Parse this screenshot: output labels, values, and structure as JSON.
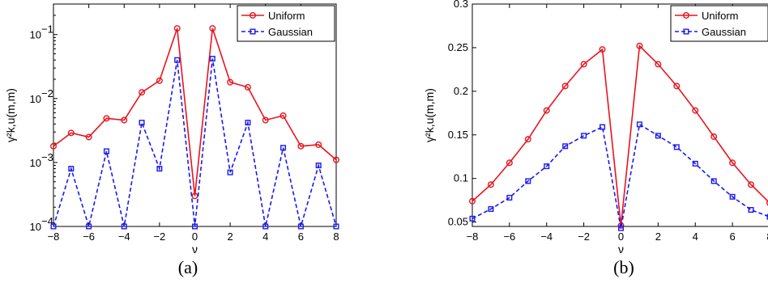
{
  "colors": {
    "uniform": "#e8141e",
    "gaussian": "#1a1aee"
  },
  "chart_data": [
    {
      "panel": "a",
      "type": "line",
      "caption": "(a)",
      "xlabel": "ν",
      "ylabel": "γ²k,u(m,m)",
      "yscale": "log",
      "xlim": [
        -8,
        8
      ],
      "ylim": [
        0.0001,
        0.3
      ],
      "xticks": [
        -8,
        -6,
        -4,
        -2,
        0,
        2,
        4,
        6,
        8
      ],
      "xtick_labels": [
        "−8",
        "−6",
        "−4",
        "−2",
        "0",
        "2",
        "4",
        "6",
        "8"
      ],
      "yticks": [
        0.0001,
        0.001,
        0.01,
        0.1
      ],
      "ytick_labels": [
        {
          "base": "10",
          "exp": "−4"
        },
        {
          "base": "10",
          "exp": "−3"
        },
        {
          "base": "10",
          "exp": "−2"
        },
        {
          "base": "10",
          "exp": "−1"
        }
      ],
      "legend": "top-right",
      "x": [
        -8,
        -7,
        -6,
        -5,
        -4,
        -3,
        -2,
        -1,
        0,
        1,
        2,
        3,
        4,
        5,
        6,
        7,
        8
      ],
      "series": [
        {
          "name": "Uniform",
          "style": "solid-circle",
          "values": [
            0.0018,
            0.0029,
            0.0025,
            0.0049,
            0.0046,
            0.0125,
            0.019,
            0.125,
            0.0003,
            0.125,
            0.018,
            0.015,
            0.0046,
            0.0054,
            0.0018,
            0.0019,
            0.0011
          ]
        },
        {
          "name": "Gaussian",
          "style": "dashed-square",
          "values": [
            0.0001,
            0.0008,
            0.0001,
            0.0015,
            0.0001,
            0.0042,
            0.0008,
            0.04,
            0.0001,
            0.042,
            0.0007,
            0.0042,
            0.0001,
            0.0017,
            0.0001,
            0.0009,
            0.0001
          ]
        }
      ]
    },
    {
      "panel": "b",
      "type": "line",
      "caption": "(b)",
      "xlabel": "ν",
      "ylabel": "γ²k,u(m,m)",
      "yscale": "linear",
      "xlim": [
        -8,
        8
      ],
      "ylim": [
        0.045,
        0.3
      ],
      "xticks": [
        -8,
        -6,
        -4,
        -2,
        0,
        2,
        4,
        6,
        8
      ],
      "xtick_labels": [
        "−8",
        "−6",
        "−4",
        "−2",
        "0",
        "2",
        "4",
        "6",
        "8"
      ],
      "yticks": [
        0.05,
        0.1,
        0.15,
        0.2,
        0.25,
        0.3
      ],
      "ytick_labels": [
        "0.05",
        "0.1",
        "0.15",
        "0.2",
        "0.25",
        "0.3"
      ],
      "legend": "top-right",
      "x": [
        -8,
        -7,
        -6,
        -5,
        -4,
        -3,
        -2,
        -1,
        0,
        1,
        2,
        3,
        4,
        5,
        6,
        7,
        8
      ],
      "series": [
        {
          "name": "Uniform",
          "style": "solid-circle",
          "values": [
            0.074,
            0.093,
            0.118,
            0.145,
            0.178,
            0.206,
            0.231,
            0.248,
            0.046,
            0.252,
            0.231,
            0.206,
            0.178,
            0.148,
            0.118,
            0.093,
            0.072
          ]
        },
        {
          "name": "Gaussian",
          "style": "dashed-square",
          "values": [
            0.054,
            0.065,
            0.078,
            0.097,
            0.114,
            0.137,
            0.149,
            0.159,
            0.043,
            0.162,
            0.149,
            0.136,
            0.117,
            0.097,
            0.079,
            0.064,
            0.056
          ]
        }
      ]
    }
  ]
}
